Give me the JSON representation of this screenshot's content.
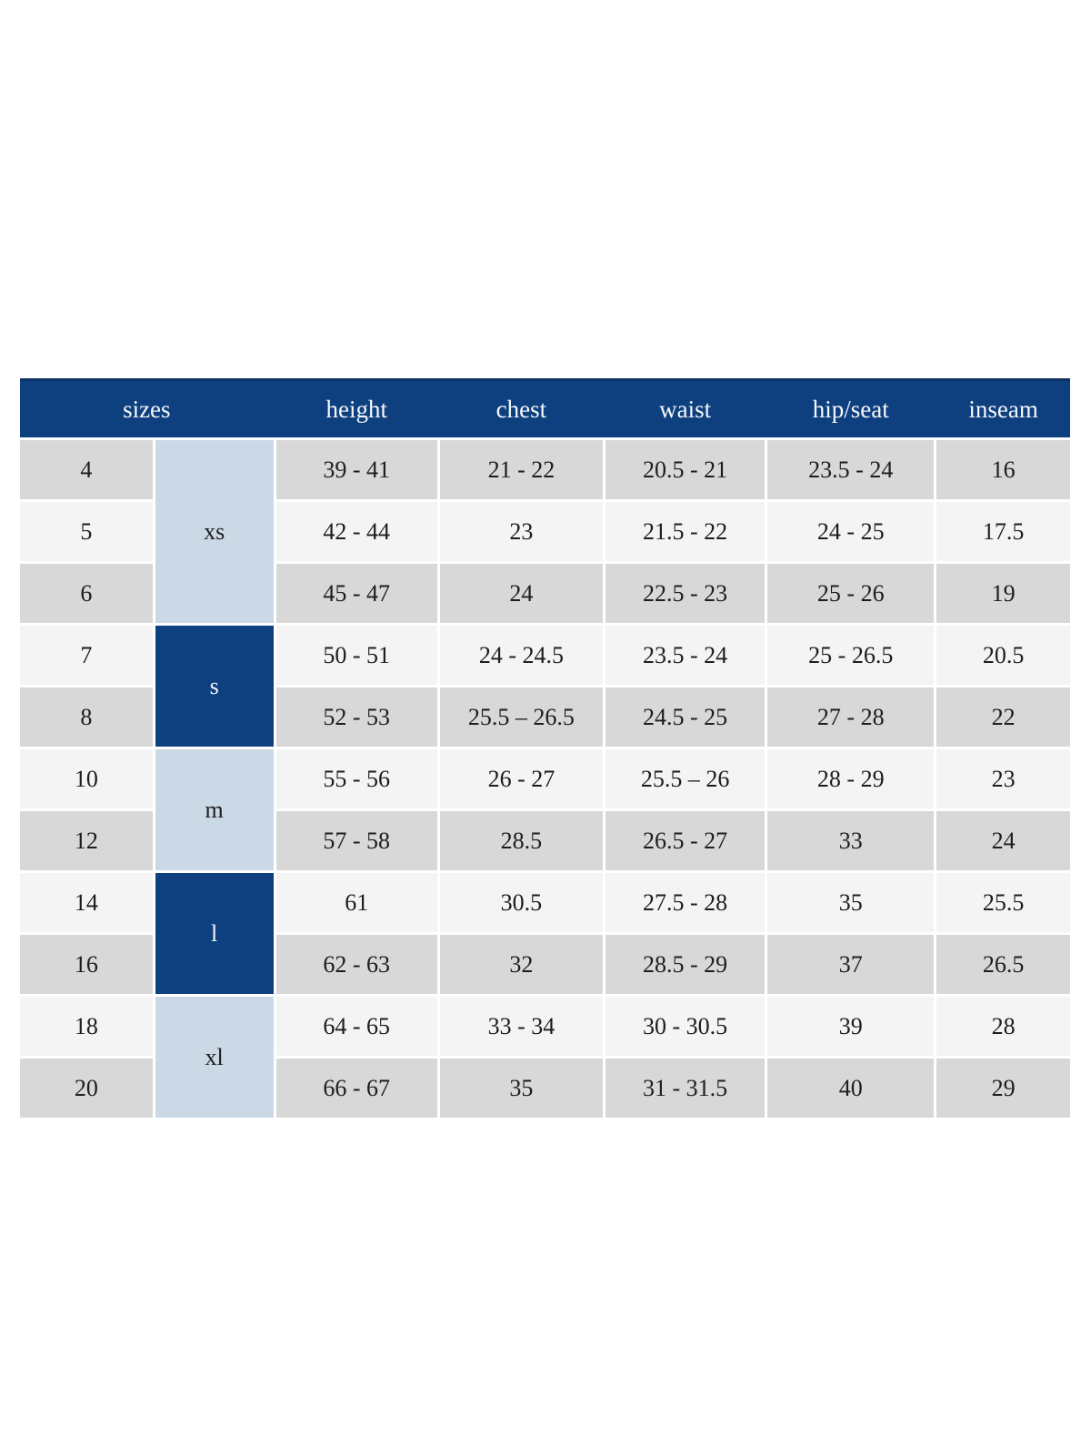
{
  "table": {
    "headers": {
      "sizes": "sizes",
      "height": "height",
      "chest": "chest",
      "waist": "waist",
      "hip_seat": "hip/seat",
      "inseam": "inseam"
    },
    "groups": [
      {
        "label": "xs",
        "span": 3,
        "style": "light"
      },
      {
        "label": "s",
        "span": 2,
        "style": "dark"
      },
      {
        "label": "m",
        "span": 2,
        "style": "light"
      },
      {
        "label": "l",
        "span": 2,
        "style": "dark"
      },
      {
        "label": "xl",
        "span": 2,
        "style": "light"
      }
    ],
    "rows": [
      {
        "size": "4",
        "height": "39 - 41",
        "chest": "21 - 22",
        "waist": "20.5 - 21",
        "hip_seat": "23.5 - 24",
        "inseam": "16"
      },
      {
        "size": "5",
        "height": "42 - 44",
        "chest": "23",
        "waist": "21.5 - 22",
        "hip_seat": "24 - 25",
        "inseam": "17.5"
      },
      {
        "size": "6",
        "height": "45 - 47",
        "chest": "24",
        "waist": "22.5 - 23",
        "hip_seat": "25 - 26",
        "inseam": "19"
      },
      {
        "size": "7",
        "height": "50 - 51",
        "chest": "24 - 24.5",
        "waist": "23.5 - 24",
        "hip_seat": "25 - 26.5",
        "inseam": "20.5"
      },
      {
        "size": "8",
        "height": "52 - 53",
        "chest": "25.5 – 26.5",
        "waist": "24.5 - 25",
        "hip_seat": "27 - 28",
        "inseam": "22"
      },
      {
        "size": "10",
        "height": "55 - 56",
        "chest": "26 - 27",
        "waist": "25.5 – 26",
        "hip_seat": "28 - 29",
        "inseam": "23"
      },
      {
        "size": "12",
        "height": "57 - 58",
        "chest": "28.5",
        "waist": "26.5 - 27",
        "hip_seat": "33",
        "inseam": "24"
      },
      {
        "size": "14",
        "height": "61",
        "chest": "30.5",
        "waist": "27.5 - 28",
        "hip_seat": "35",
        "inseam": "25.5"
      },
      {
        "size": "16",
        "height": "62 - 63",
        "chest": "32",
        "waist": "28.5 - 29",
        "hip_seat": "37",
        "inseam": "26.5"
      },
      {
        "size": "18",
        "height": "64 - 65",
        "chest": "33 - 34",
        "waist": "30 - 30.5",
        "hip_seat": "39",
        "inseam": "28"
      },
      {
        "size": "20",
        "height": "66 - 67",
        "chest": "35",
        "waist": "31 - 31.5",
        "hip_seat": "40",
        "inseam": "29"
      }
    ],
    "colors": {
      "header_bg": "#0e4080",
      "header_top_border": "#0b3164",
      "header_text": "#f6f7fa",
      "group_dark_bg": "#0e4080",
      "group_light_bg": "#cbd8e6",
      "row_gray": "#d8d8d8",
      "row_light": "#f4f4f4",
      "body_text": "#1d1d1f",
      "page_bg": "#ffffff"
    }
  }
}
